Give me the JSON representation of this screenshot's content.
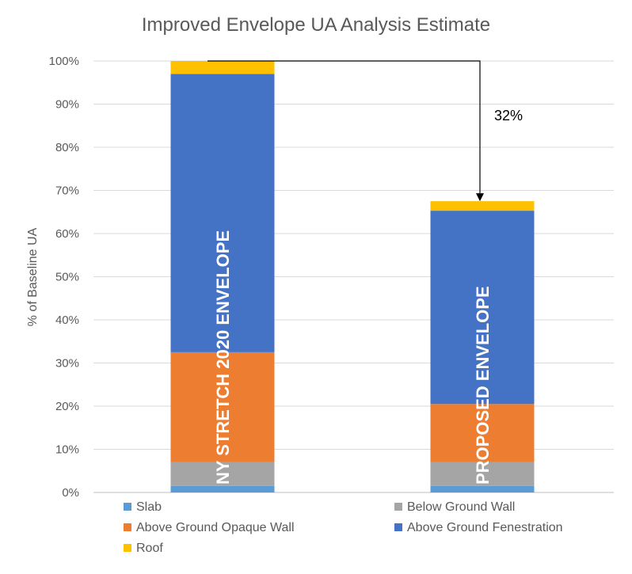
{
  "chart_data": {
    "type": "bar",
    "stacked": true,
    "title": "Improved Envelope UA Analysis Estimate",
    "xlabel": "",
    "ylabel": "% of Baseline UA",
    "ylim": [
      0,
      100
    ],
    "yticks": [
      "0%",
      "10%",
      "20%",
      "30%",
      "40%",
      "50%",
      "60%",
      "70%",
      "80%",
      "90%",
      "100%"
    ],
    "categories": [
      "NY STRETCH 2020 ENVELOPE",
      "PROPOSED ENVELOPE"
    ],
    "series": [
      {
        "name": "Slab",
        "color": "#5B9BD5",
        "values": [
          1.5,
          1.5
        ]
      },
      {
        "name": "Below Ground Wall",
        "color": "#A5A5A5",
        "values": [
          5.5,
          5.5
        ]
      },
      {
        "name": "Above Ground Opaque Wall",
        "color": "#ED7D31",
        "values": [
          25.5,
          13.5
        ]
      },
      {
        "name": "Above Ground Fenestration",
        "color": "#4472C4",
        "values": [
          64.5,
          44.8
        ]
      },
      {
        "name": "Roof",
        "color": "#FFC000",
        "values": [
          3.0,
          2.2
        ]
      }
    ],
    "annotation": {
      "text": "32%",
      "from_value": 100,
      "to_value": 67.5
    },
    "legend_position": "bottom"
  }
}
